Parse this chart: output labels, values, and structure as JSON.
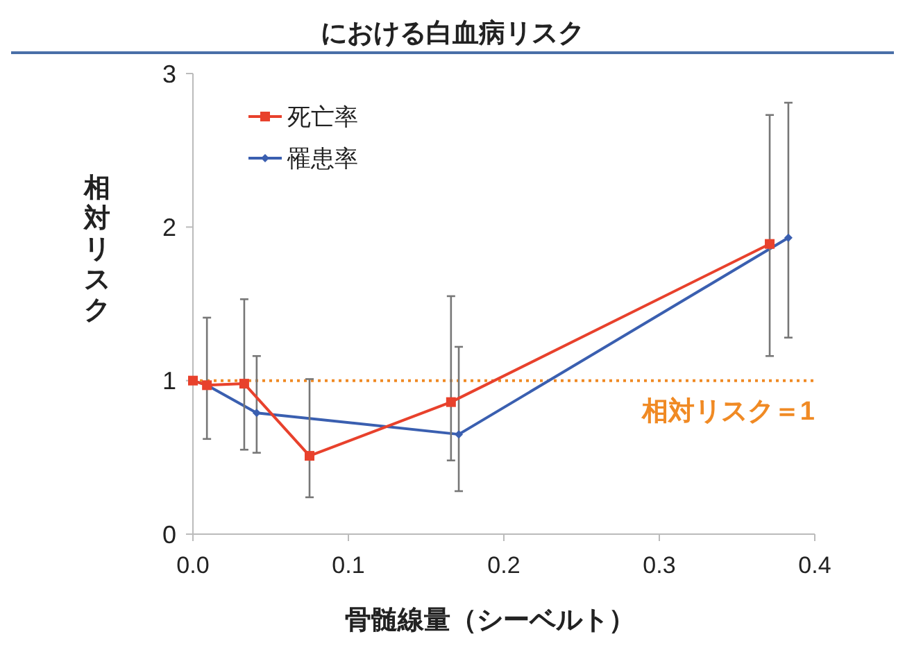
{
  "chart_data": {
    "type": "line",
    "title": "における白血病リスク",
    "xlabel": "骨髄線量（シーベルト）",
    "ylabel": "相対リスク",
    "xlim": [
      0,
      0.4
    ],
    "xticks": [
      {
        "value": 0,
        "label": "0.0"
      },
      {
        "value": 0.1,
        "label": "0.1"
      },
      {
        "value": 0.2,
        "label": "0.2"
      },
      {
        "value": 0.3,
        "label": "0.3"
      },
      {
        "value": 0.4,
        "label": "0.4"
      }
    ],
    "ylim": [
      0,
      3
    ],
    "yticks": [
      0,
      1,
      2,
      3
    ],
    "grid": false,
    "legend": "top left",
    "line_style": "solid",
    "ref_lines": [
      {
        "axis": "y",
        "value": 1,
        "label": "相対リスク＝1",
        "color": "#f08a24",
        "line_style": "dotted"
      }
    ],
    "series": [
      {
        "name": "死亡率",
        "color": "#e8412c",
        "marker": "square",
        "x": [
          0,
          0.009,
          0.033,
          0.075,
          0.166,
          0.371
        ],
        "values": [
          1.0,
          0.97,
          0.98,
          0.51,
          0.86,
          1.89
        ],
        "errors": [
          null,
          null,
          [
            0.55,
            1.53
          ],
          [
            0.24,
            1.01
          ],
          [
            0.48,
            1.55
          ],
          [
            1.16,
            2.73
          ]
        ]
      },
      {
        "name": "罹患率",
        "color": "#3a5fb0",
        "marker": "diamond",
        "x": [
          0,
          0.009,
          0.041,
          0.171,
          0.383
        ],
        "values": [
          1.0,
          0.97,
          0.79,
          0.65,
          1.93
        ],
        "errors": [
          null,
          [
            0.62,
            1.41
          ],
          [
            0.53,
            1.16
          ],
          [
            0.28,
            1.22
          ],
          [
            1.28,
            2.81
          ]
        ]
      }
    ]
  }
}
